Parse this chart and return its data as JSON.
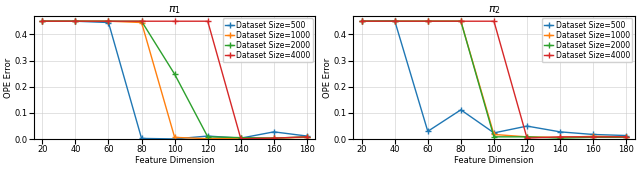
{
  "title1": "$\\pi_1$",
  "title2": "$\\pi_2$",
  "xlabel": "Feature Dimension",
  "ylabel": "OPE Error",
  "x": [
    20,
    40,
    60,
    80,
    100,
    120,
    140,
    160,
    180
  ],
  "plot1": {
    "500": [
      0.45,
      0.45,
      0.445,
      0.003,
      0.001,
      0.012,
      0.004,
      0.028,
      0.012
    ],
    "1000": [
      0.45,
      0.45,
      0.45,
      0.445,
      0.007,
      0.002,
      0.004,
      0.004,
      0.007
    ],
    "2000": [
      0.45,
      0.45,
      0.45,
      0.45,
      0.248,
      0.009,
      0.006,
      0.004,
      0.009
    ],
    "4000": [
      0.45,
      0.45,
      0.45,
      0.45,
      0.45,
      0.45,
      0.002,
      0.004,
      0.009
    ]
  },
  "plot2": {
    "500": [
      0.45,
      0.452,
      0.03,
      0.112,
      0.024,
      0.05,
      0.028,
      0.018,
      0.014
    ],
    "1000": [
      0.45,
      0.45,
      0.45,
      0.45,
      0.018,
      0.009,
      0.007,
      0.011,
      0.009
    ],
    "2000": [
      0.45,
      0.45,
      0.45,
      0.45,
      0.009,
      0.009,
      0.004,
      0.007,
      0.007
    ],
    "4000": [
      0.45,
      0.45,
      0.45,
      0.45,
      0.45,
      0.004,
      0.009,
      0.009,
      0.009
    ]
  },
  "colors": {
    "500": "#1f77b4",
    "1000": "#ff7f0e",
    "2000": "#2ca02c",
    "4000": "#d62728"
  },
  "legend_labels": {
    "500": "Dataset Size=500",
    "1000": "Dataset Size=1000",
    "2000": "Dataset Size=2000",
    "4000": "Dataset Size=4000"
  },
  "ylim": [
    0.0,
    0.47
  ],
  "yticks": [
    0.0,
    0.1,
    0.2,
    0.3,
    0.4
  ],
  "xticks": [
    20,
    40,
    60,
    80,
    100,
    120,
    140,
    160,
    180
  ],
  "marker": "+",
  "markersize": 4,
  "linewidth": 1.0,
  "fontsize_title": 8,
  "fontsize_axis": 6,
  "fontsize_tick": 6,
  "fontsize_legend": 5.5
}
